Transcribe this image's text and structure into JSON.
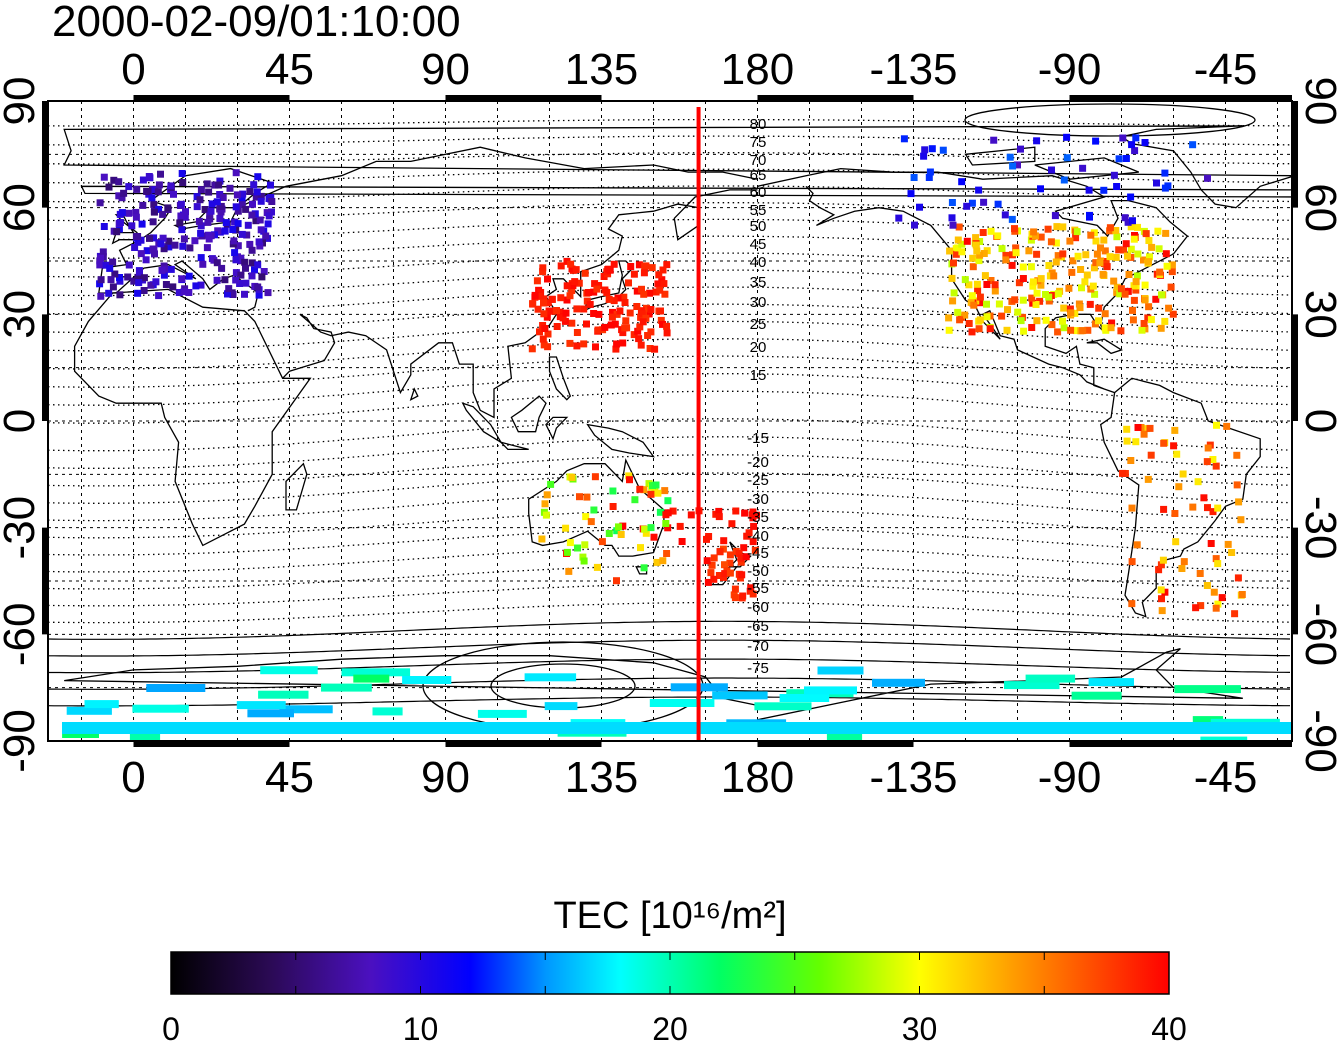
{
  "title": "2000-02-09/01:10:00",
  "map": {
    "lon_ticks": [
      "0",
      "45",
      "90",
      "135",
      "180",
      "-135",
      "-90",
      "-45"
    ],
    "lat_ticks": [
      "90",
      "60",
      "30",
      "0",
      "-30",
      "-60",
      "-90"
    ],
    "terminator_longitude": 163,
    "magnetic_latitude_labels": [
      "80",
      "75",
      "70",
      "65",
      "60",
      "55",
      "50",
      "45",
      "40",
      "35",
      "30",
      "25",
      "20",
      "15",
      "-15",
      "-20",
      "-25",
      "-30",
      "-35",
      "-40",
      "-45",
      "-50",
      "-55",
      "-60",
      "-65",
      "-70",
      "-75"
    ],
    "tec_clusters": [
      {
        "name": "europe",
        "lon": [
          -10,
          40
        ],
        "lat": [
          35,
          70
        ],
        "tec": [
          5,
          11
        ]
      },
      {
        "name": "japan-china",
        "lon": [
          115,
          155
        ],
        "lat": [
          20,
          45
        ],
        "tec": [
          38,
          40
        ]
      },
      {
        "name": "north-america",
        "lon": [
          -125,
          -60
        ],
        "lat": [
          25,
          55
        ],
        "tec": [
          28,
          40
        ]
      },
      {
        "name": "canada-arctic",
        "lon": [
          -140,
          -50
        ],
        "lat": [
          55,
          80
        ],
        "tec": [
          8,
          14
        ]
      },
      {
        "name": "south-america",
        "lon": [
          -75,
          -40
        ],
        "lat": [
          -55,
          0
        ],
        "tec": [
          30,
          40
        ]
      },
      {
        "name": "australia",
        "lon": [
          115,
          155
        ],
        "lat": [
          -45,
          -15
        ],
        "tec": [
          22,
          40
        ]
      },
      {
        "name": "new-zealand",
        "lon": [
          165,
          180
        ],
        "lat": [
          -50,
          -35
        ],
        "tec": [
          37,
          40
        ]
      },
      {
        "name": "south-pacific",
        "lon": [
          150,
          180
        ],
        "lat": [
          -35,
          -25
        ],
        "tec": [
          39,
          40
        ]
      },
      {
        "name": "antarctica",
        "lon": [
          -20,
          330
        ],
        "lat": [
          -90,
          -70
        ],
        "tec": [
          15,
          22
        ]
      }
    ]
  },
  "colorbar": {
    "label": "TEC  [10¹⁶/m²]",
    "min": 0,
    "max": 40,
    "tick_labels": [
      "0",
      "10",
      "20",
      "30",
      "40"
    ]
  }
}
